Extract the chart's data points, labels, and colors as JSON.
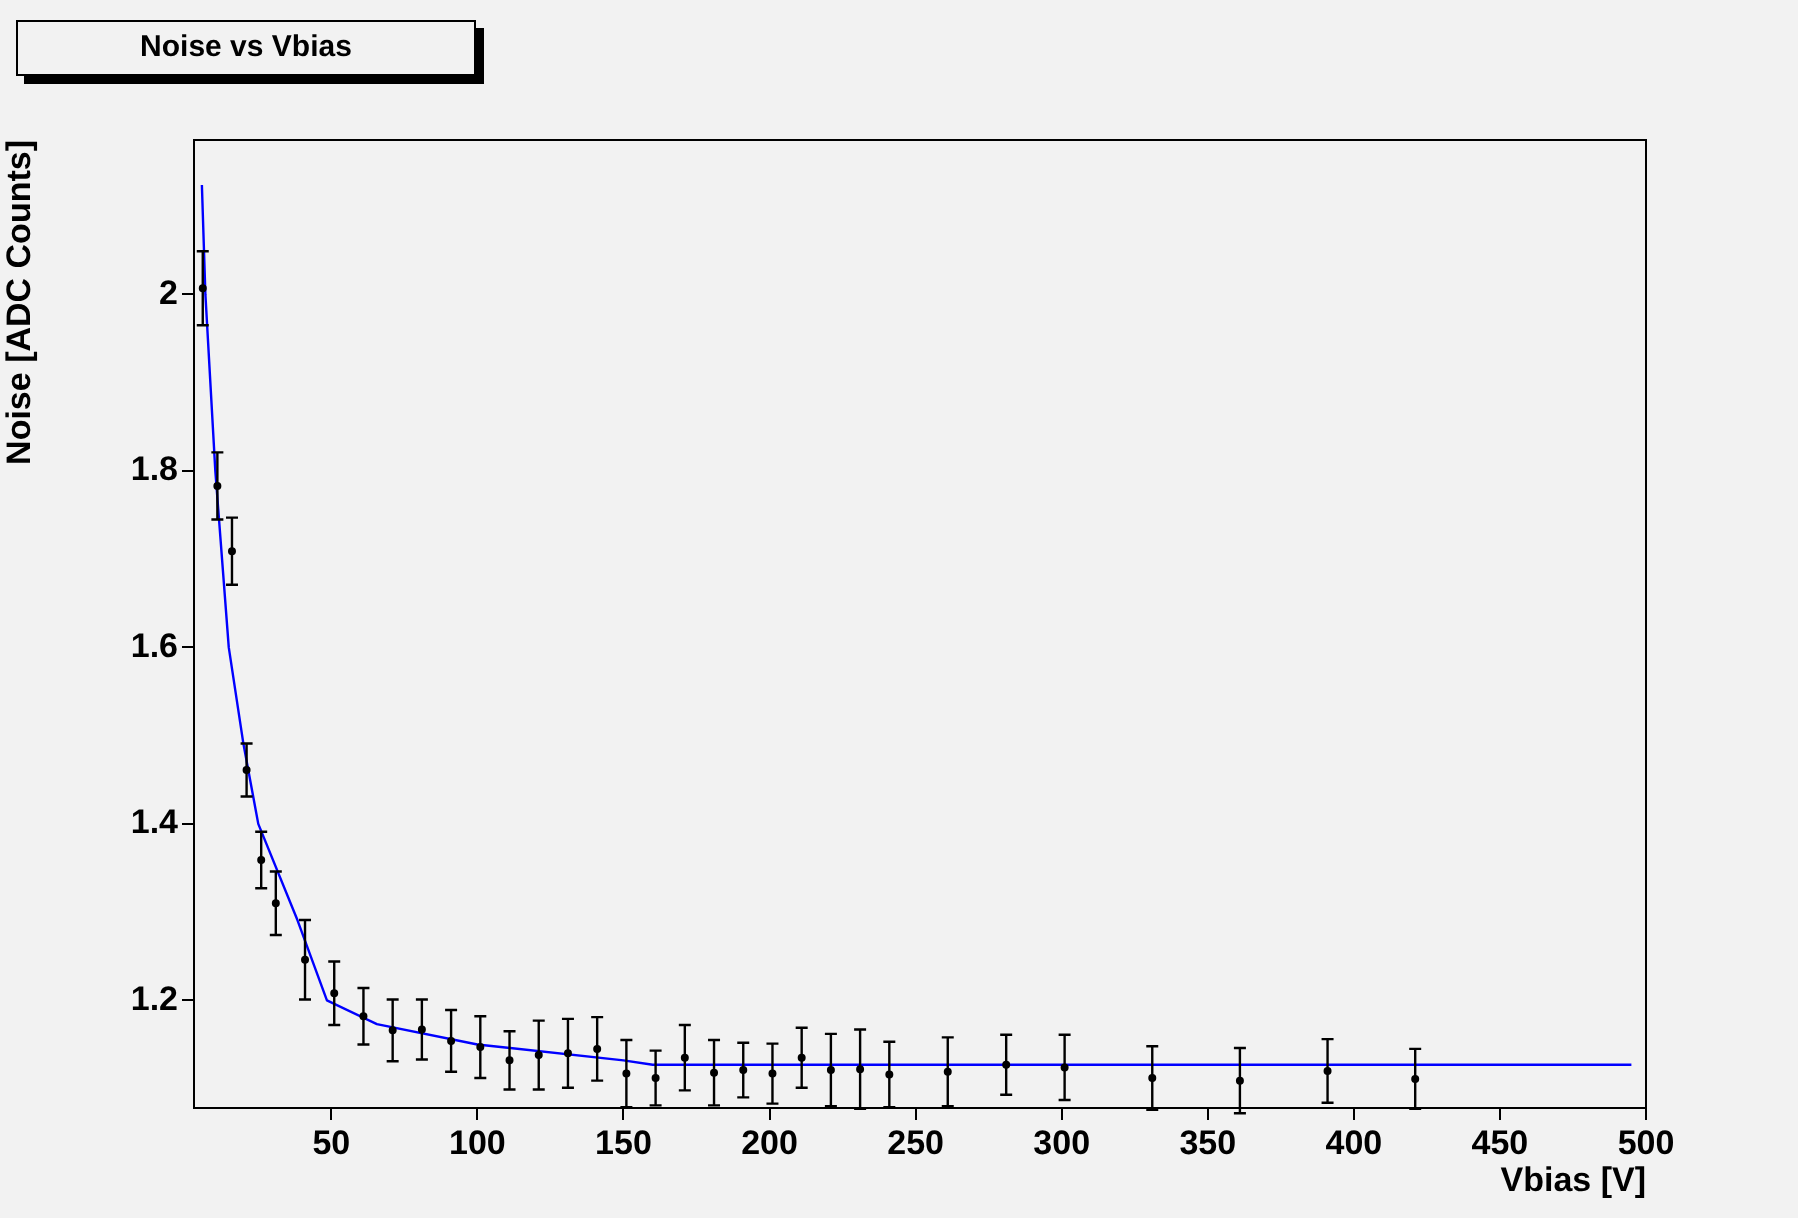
{
  "chart_data": {
    "type": "scatter",
    "title": "Noise vs Vbias",
    "xlabel": "Vbias [V]",
    "ylabel": "Noise [ADC Counts]",
    "xlim": [
      3,
      500
    ],
    "ylim": [
      1.078,
      2.175
    ],
    "xticks": [
      50,
      100,
      150,
      200,
      250,
      300,
      350,
      400,
      450,
      500
    ],
    "yticks": [
      1.2,
      1.4,
      1.6,
      1.8,
      2
    ],
    "legend": false,
    "series": [
      {
        "color": "#000000",
        "marker": "circle",
        "x": [
          6,
          11,
          16,
          21,
          26,
          31,
          41,
          51,
          61,
          71,
          81,
          91,
          101,
          111,
          121,
          131,
          141,
          151,
          161,
          171,
          181,
          191,
          201,
          211,
          221,
          231,
          241,
          261,
          281,
          301,
          331,
          361,
          391,
          421
        ],
        "values": [
          2.007,
          1.783,
          1.709,
          1.461,
          1.359,
          1.31,
          1.246,
          1.208,
          1.182,
          1.166,
          1.167,
          1.154,
          1.147,
          1.132,
          1.138,
          1.14,
          1.145,
          1.117,
          1.112,
          1.135,
          1.118,
          1.121,
          1.117,
          1.135,
          1.121,
          1.122,
          1.116,
          1.119,
          1.127,
          1.124,
          1.112,
          1.109,
          1.12,
          1.111
        ],
        "errors": [
          0.042,
          0.038,
          0.038,
          0.03,
          0.032,
          0.036,
          0.045,
          0.036,
          0.032,
          0.035,
          0.034,
          0.035,
          0.035,
          0.033,
          0.039,
          0.039,
          0.036,
          0.038,
          0.031,
          0.037,
          0.037,
          0.031,
          0.034,
          0.034,
          0.041,
          0.045,
          0.037,
          0.039,
          0.034,
          0.037,
          0.036,
          0.037,
          0.036,
          0.034
        ]
      },
      {
        "type": "line",
        "marker": "none",
        "color": "#0000ff",
        "x": [
          5.7,
          6.9,
          10.3,
          14.9,
          19.9,
          25,
          38.4,
          48.5,
          65.6,
          100,
          150,
          160,
          495
        ],
        "values": [
          2.124,
          2.0,
          1.8,
          1.6,
          1.491,
          1.4,
          1.291,
          1.2,
          1.173,
          1.15,
          1.132,
          1.127,
          1.127
        ]
      }
    ]
  }
}
